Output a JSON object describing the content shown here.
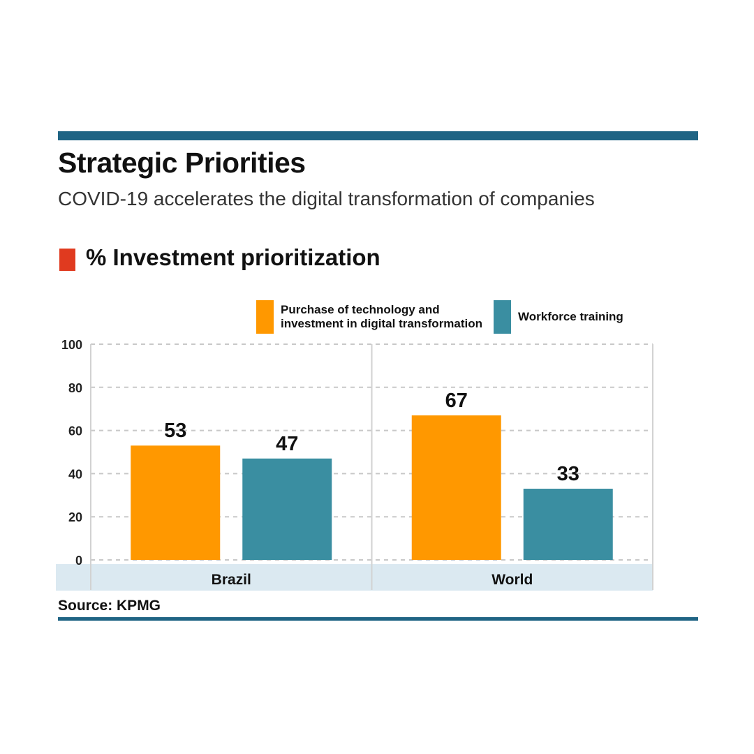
{
  "title": "Strategic Priorities",
  "subtitle": "COVID-19 accelerates the digital transformation of companies",
  "section_title": "% Investment prioritization",
  "source": "Source: KPMG",
  "colors": {
    "rule": "#1f6484",
    "marker": "#e03a1f",
    "tech": "#ff9800",
    "training": "#3a8ea1",
    "band": "#dbe9f1"
  },
  "chart_data": {
    "type": "bar",
    "title": "% Investment prioritization",
    "categories": [
      "Brazil",
      "World"
    ],
    "series": [
      {
        "name": "Purchase of technology and\ninvestment in digital transformation",
        "values": [
          53,
          67
        ],
        "color": "#ff9800"
      },
      {
        "name": "Workforce training",
        "values": [
          47,
          33
        ],
        "color": "#3a8ea1"
      }
    ],
    "ylim": [
      0,
      100
    ],
    "yticks": [
      0,
      20,
      40,
      60,
      80,
      100
    ],
    "grid": true,
    "legend_position": "top",
    "data_labels": true
  }
}
